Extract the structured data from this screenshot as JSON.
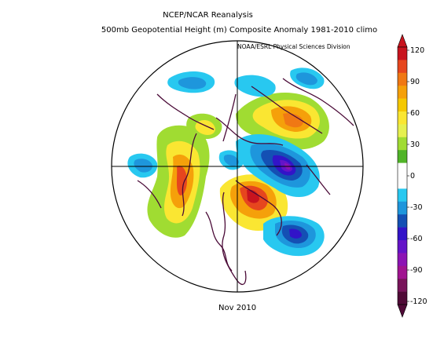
{
  "map": {
    "title_line1": "NCEP/NCAR Reanalysis",
    "title_line2": "500mb Geopotential Height (m) Composite Anomaly 1981-2010 climo",
    "credit": "NOAA/ESRL Physical Sciences Division",
    "date": "Nov 2010",
    "projection": "north-polar-stereographic"
  },
  "colorbar": {
    "ticks": [
      "120",
      "90",
      "60",
      "30",
      "0",
      "-30",
      "-60",
      "-90",
      "-120"
    ],
    "colors_top_to_bottom": [
      "#c8141e",
      "#e6461e",
      "#f07814",
      "#f5a00a",
      "#f5c800",
      "#fae632",
      "#e6f050",
      "#a0dc32",
      "#50b428",
      "#ffffff",
      "#ffffff",
      "#28c8f0",
      "#1e96dc",
      "#1450b4",
      "#3214c8",
      "#6414c8",
      "#8c14b4",
      "#a01490",
      "#78145a",
      "#500a37"
    ]
  },
  "anomaly_regions": [
    {
      "name": "western-atlantic-europe-positive",
      "sign": "positive"
    },
    {
      "name": "hudson-bay-positive",
      "sign": "positive"
    },
    {
      "name": "siberia-positive",
      "sign": "positive"
    },
    {
      "name": "kamchatka-negative",
      "sign": "negative"
    },
    {
      "name": "western-us-negative",
      "sign": "negative"
    },
    {
      "name": "north-atlantic-negative",
      "sign": "negative"
    }
  ]
}
